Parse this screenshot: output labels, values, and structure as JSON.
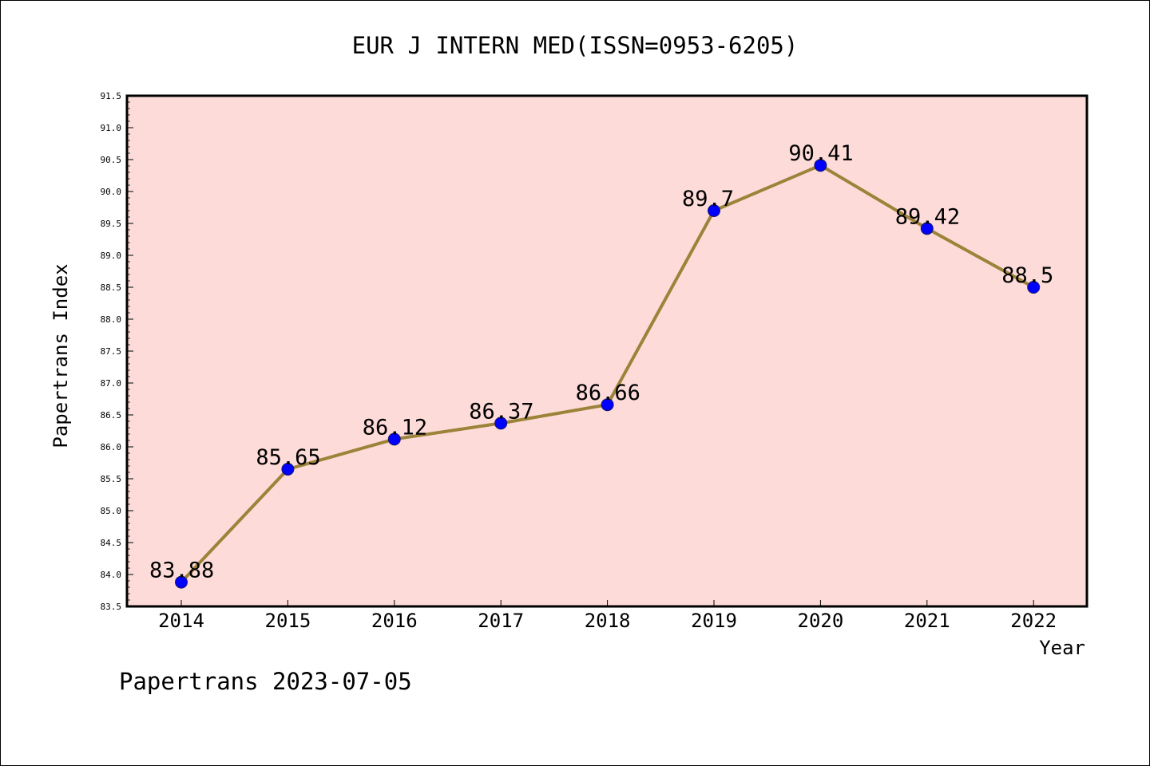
{
  "chart_data": {
    "type": "line",
    "title": "EUR J INTERN MED(ISSN=0953-6205)",
    "xlabel": "Year",
    "ylabel": "Papertrans Index",
    "categories": [
      "2014",
      "2015",
      "2016",
      "2017",
      "2018",
      "2019",
      "2020",
      "2021",
      "2022"
    ],
    "values": [
      83.88,
      85.65,
      86.12,
      86.37,
      86.66,
      89.7,
      90.41,
      89.42,
      88.5
    ],
    "data_labels": [
      "83.88",
      "85.65",
      "86.12",
      "86.37",
      "86.66",
      "89.7",
      "90.41",
      "89.42",
      "88.5"
    ],
    "ylim": [
      83.5,
      91.5
    ],
    "yticks": [
      "83.5",
      "84.0",
      "84.5",
      "85.0",
      "85.5",
      "86.0",
      "86.5",
      "87.0",
      "87.5",
      "88.0",
      "88.5",
      "89.0",
      "89.5",
      "90.0",
      "90.5",
      "91.0",
      "91.5"
    ],
    "grid": false,
    "colors": {
      "plot_background": "#fddbd9",
      "line": "#9c8339",
      "marker": "#0000ff"
    }
  },
  "footer": "Papertrans 2023-07-05"
}
